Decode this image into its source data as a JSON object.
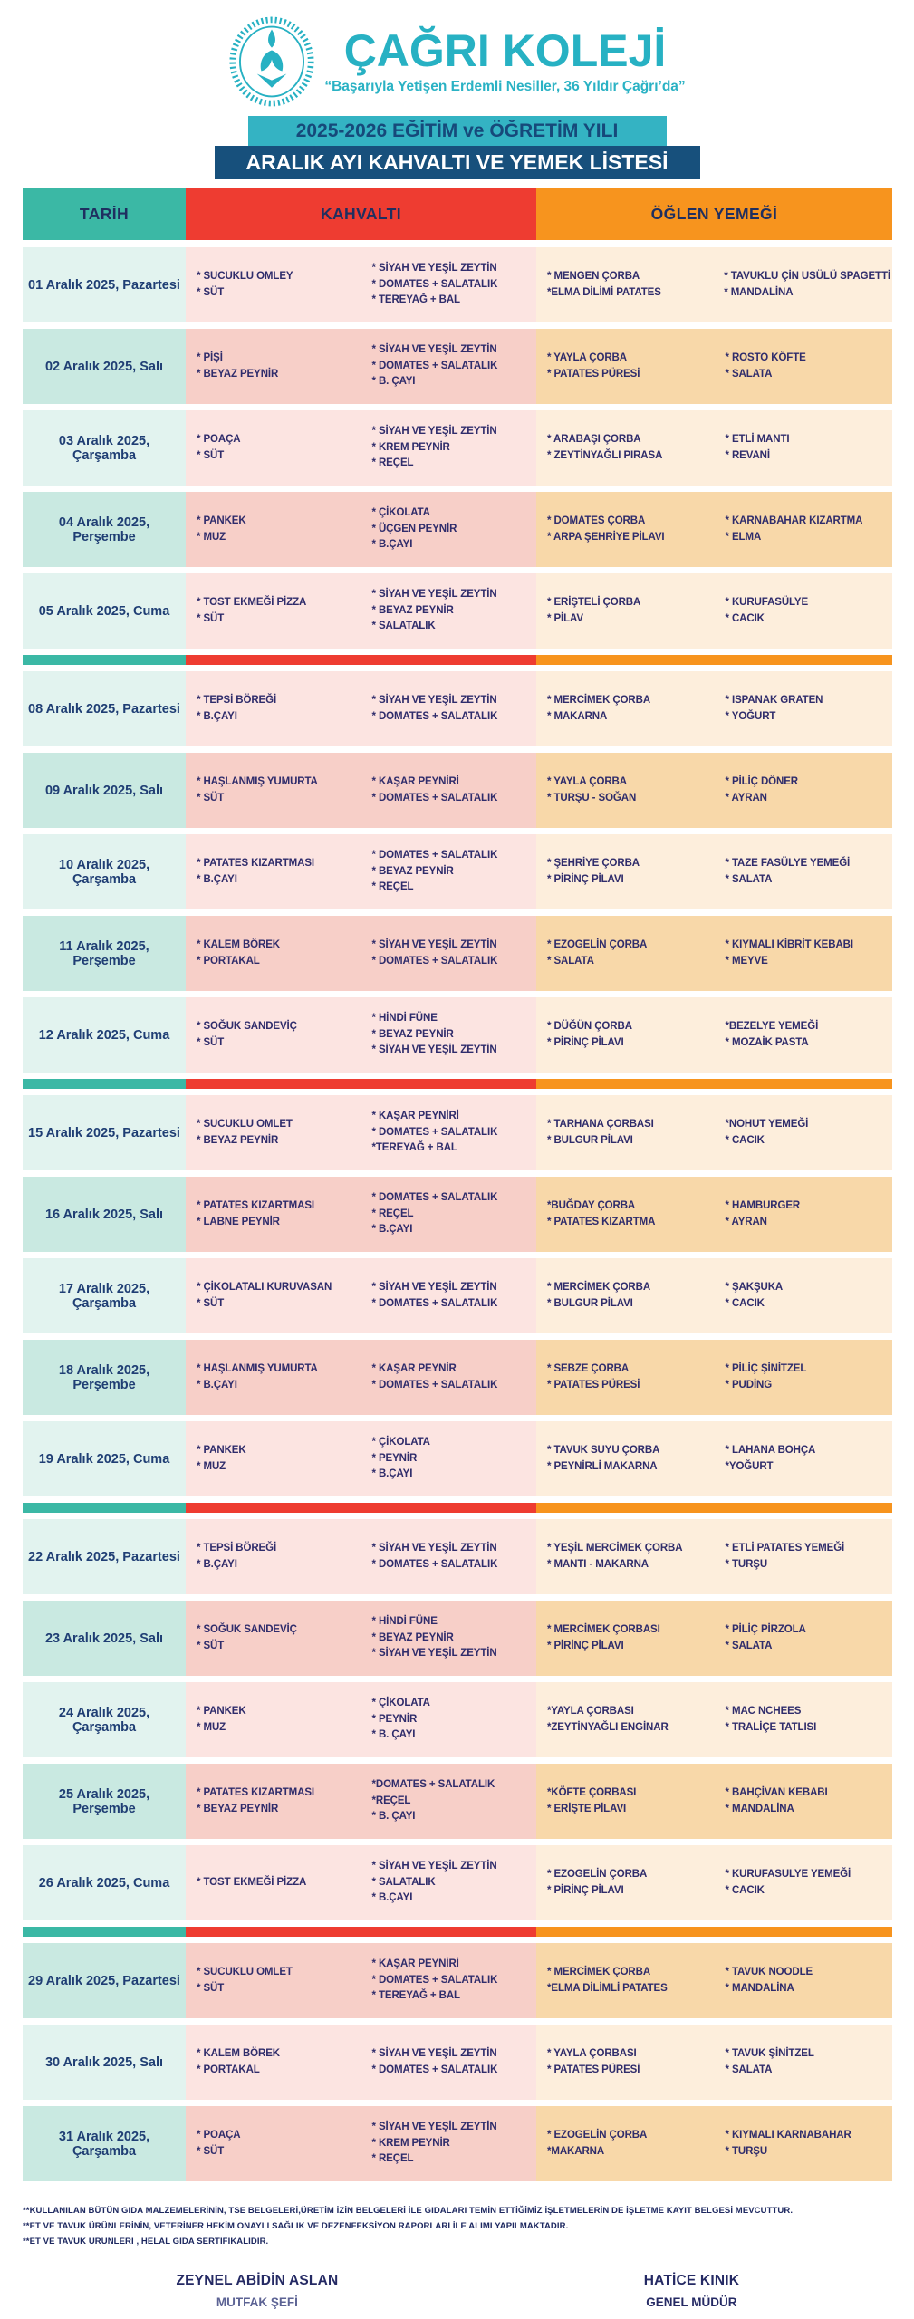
{
  "header": {
    "school_name": "ÇAĞRI KOLEJİ",
    "slogan": "“Başarıyla Yetişen Erdemli Nesiller, 36 Yıldır Çağrı’da”",
    "year_banner": "2025-2026 EĞİTİM ve ÖĞRETİM YILI",
    "title_banner": "ARALIK AYI KAHVALTI VE YEMEK LİSTESİ",
    "logo_icon": "laurel-wreath-tulip-emblem"
  },
  "colors": {
    "brand_teal": "#27b1c3",
    "banner_navy": "#17507c",
    "date_header": "#3bb8a5",
    "breakfast_header": "#ee3c31",
    "lunch_header": "#f7941e",
    "text_navy": "#1f3e74",
    "text_indigo": "#2f2c6b"
  },
  "table": {
    "columns": [
      "TARİH",
      "KAHVALTI",
      "ÖĞLEN YEMEĞİ"
    ],
    "weeks": [
      {
        "rows": [
          {
            "date": "01 Aralık 2025, Pazartesi",
            "shade": "light",
            "breakfast": [
              [
                "* SUCUKLU OMLEY",
                "* SÜT"
              ],
              [
                "* SİYAH VE YEŞİL ZEYTİN",
                "* DOMATES + SALATALIK",
                "* TEREYAĞ + BAL"
              ]
            ],
            "lunch": [
              [
                "* MENGEN ÇORBA",
                "*ELMA DİLİMİ PATATES"
              ],
              [
                "* TAVUKLU ÇİN USÜLÜ SPAGETTİ",
                "* MANDALİNA"
              ]
            ]
          },
          {
            "date": "02 Aralık 2025, Salı",
            "shade": "dark",
            "breakfast": [
              [
                "* PİŞİ",
                "* BEYAZ PEYNİR"
              ],
              [
                "* SİYAH VE YEŞİL ZEYTİN",
                "* DOMATES + SALATALIK",
                "* B. ÇAYI"
              ]
            ],
            "lunch": [
              [
                "* YAYLA ÇORBA",
                "* PATATES PÜRESİ"
              ],
              [
                "* ROSTO KÖFTE",
                "* SALATA"
              ]
            ]
          },
          {
            "date": "03 Aralık 2025, Çarşamba",
            "shade": "light",
            "breakfast": [
              [
                "* POAÇA",
                "* SÜT"
              ],
              [
                "* SİYAH VE YEŞİL ZEYTİN",
                "* KREM PEYNİR",
                "* REÇEL"
              ]
            ],
            "lunch": [
              [
                "* ARABAŞI ÇORBA",
                "* ZEYTİNYAĞLI PIRASA"
              ],
              [
                "* ETLİ MANTI",
                "* REVANİ"
              ]
            ]
          },
          {
            "date": "04 Aralık 2025, Perşembe",
            "shade": "dark",
            "breakfast": [
              [
                "* PANKEK",
                "* MUZ"
              ],
              [
                "* ÇİKOLATA",
                "* ÜÇGEN PEYNİR",
                "* B.ÇAYI"
              ]
            ],
            "lunch": [
              [
                "* DOMATES ÇORBA",
                "* ARPA ŞEHRİYE PİLAVI"
              ],
              [
                "* KARNABAHAR KIZARTMA",
                "* ELMA"
              ]
            ]
          },
          {
            "date": "05 Aralık 2025, Cuma",
            "shade": "light",
            "breakfast": [
              [
                "* TOST EKMEĞİ PİZZA",
                "* SÜT"
              ],
              [
                "* SİYAH VE YEŞİL ZEYTİN",
                "* BEYAZ PEYNİR",
                "* SALATALIK"
              ]
            ],
            "lunch": [
              [
                "* ERİŞTELİ ÇORBA",
                "* PİLAV"
              ],
              [
                "* KURUFASÜLYE",
                "* CACIK"
              ]
            ]
          }
        ]
      },
      {
        "rows": [
          {
            "date": "08 Aralık 2025, Pazartesi",
            "shade": "light",
            "breakfast": [
              [
                "* TEPSİ BÖREĞİ",
                "* B.ÇAYI"
              ],
              [
                "* SİYAH VE YEŞİL ZEYTİN",
                "* DOMATES + SALATALIK"
              ]
            ],
            "lunch": [
              [
                "* MERCİMEK ÇORBA",
                "* MAKARNA"
              ],
              [
                "* ISPANAK GRATEN",
                "* YOĞURT"
              ]
            ]
          },
          {
            "date": "09 Aralık 2025, Salı",
            "shade": "dark",
            "breakfast": [
              [
                "* HAŞLANMIŞ YUMURTA",
                "* SÜT"
              ],
              [
                "* KAŞAR PEYNİRİ",
                "* DOMATES + SALATALIK"
              ]
            ],
            "lunch": [
              [
                "* YAYLA ÇORBA",
                "* TURŞU - SOĞAN"
              ],
              [
                "* PİLİÇ DÖNER",
                "* AYRAN"
              ]
            ]
          },
          {
            "date": "10 Aralık 2025, Çarşamba",
            "shade": "light",
            "breakfast": [
              [
                "* PATATES KIZARTMASI",
                "* B.ÇAYI"
              ],
              [
                "* DOMATES + SALATALIK",
                "* BEYAZ PEYNİR",
                "* REÇEL"
              ]
            ],
            "lunch": [
              [
                "* ŞEHRİYE ÇORBA",
                "* PİRİNÇ PİLAVI"
              ],
              [
                "* TAZE FASÜLYE YEMEĞİ",
                "* SALATA"
              ]
            ]
          },
          {
            "date": "11 Aralık 2025, Perşembe",
            "shade": "dark",
            "breakfast": [
              [
                "* KALEM BÖREK",
                "* PORTAKAL"
              ],
              [
                "* SİYAH VE YEŞİL ZEYTİN",
                "* DOMATES + SALATALIK"
              ]
            ],
            "lunch": [
              [
                "* EZOGELİN ÇORBA",
                "* SALATA"
              ],
              [
                "* KIYMALI KİBRİT KEBABI",
                "* MEYVE"
              ]
            ]
          },
          {
            "date": "12 Aralık 2025, Cuma",
            "shade": "light",
            "breakfast": [
              [
                "* SOĞUK SANDEVİÇ",
                "* SÜT"
              ],
              [
                "* HİNDİ FÜNE",
                "* BEYAZ PEYNİR",
                "* SİYAH VE YEŞİL ZEYTİN"
              ]
            ],
            "lunch": [
              [
                "* DÜĞÜN ÇORBA",
                "* PİRİNÇ PİLAVI"
              ],
              [
                "*BEZELYE YEMEĞİ",
                "* MOZAİK PASTA"
              ]
            ]
          }
        ]
      },
      {
        "rows": [
          {
            "date": "15 Aralık 2025, Pazartesi",
            "shade": "light",
            "breakfast": [
              [
                "* SUCUKLU OMLET",
                "* BEYAZ PEYNİR"
              ],
              [
                "* KAŞAR PEYNİRİ",
                "* DOMATES + SALATALIK",
                "*TEREYAĞ + BAL"
              ]
            ],
            "lunch": [
              [
                "* TARHANA ÇORBASI",
                "* BULGUR PİLAVI"
              ],
              [
                "*NOHUT YEMEĞİ",
                "* CACIK"
              ]
            ]
          },
          {
            "date": "16 Aralık 2025, Salı",
            "shade": "dark",
            "breakfast": [
              [
                "* PATATES KIZARTMASI",
                "* LABNE PEYNİR"
              ],
              [
                "* DOMATES + SALATALIK",
                "* REÇEL",
                "* B.ÇAYI"
              ]
            ],
            "lunch": [
              [
                "*BUĞDAY ÇORBA",
                "* PATATES KIZARTMA"
              ],
              [
                "* HAMBURGER",
                "* AYRAN"
              ]
            ]
          },
          {
            "date": "17 Aralık 2025, Çarşamba",
            "shade": "light",
            "breakfast": [
              [
                "* ÇİKOLATALI KURUVASAN",
                "* SÜT"
              ],
              [
                "* SİYAH VE YEŞİL ZEYTİN",
                "* DOMATES + SALATALIK"
              ]
            ],
            "lunch": [
              [
                "* MERCİMEK ÇORBA",
                "* BULGUR PİLAVI"
              ],
              [
                "* ŞAKŞUKA",
                "* CACIK"
              ]
            ]
          },
          {
            "date": "18 Aralık 2025, Perşembe",
            "shade": "dark",
            "breakfast": [
              [
                "* HAŞLANMIŞ YUMURTA",
                "* B.ÇAYI"
              ],
              [
                "* KAŞAR PEYNİR",
                "* DOMATES + SALATALIK"
              ]
            ],
            "lunch": [
              [
                "* SEBZE ÇORBA",
                "* PATATES PÜRESİ"
              ],
              [
                "* PİLİÇ ŞİNİTZEL",
                "* PUDİNG"
              ]
            ]
          },
          {
            "date": "19 Aralık 2025, Cuma",
            "shade": "light",
            "breakfast": [
              [
                "* PANKEK",
                "* MUZ"
              ],
              [
                "* ÇİKOLATA",
                "* PEYNİR",
                "* B.ÇAYI"
              ]
            ],
            "lunch": [
              [
                "* TAVUK SUYU ÇORBA",
                "* PEYNİRLİ MAKARNA"
              ],
              [
                "* LAHANA BOHÇA",
                "*YOĞURT"
              ]
            ]
          }
        ]
      },
      {
        "rows": [
          {
            "date": "22 Aralık 2025, Pazartesi",
            "shade": "light",
            "breakfast": [
              [
                "* TEPSİ BÖREĞİ",
                "* B.ÇAYI"
              ],
              [
                "* SİYAH VE YEŞİL ZEYTİN",
                "* DOMATES + SALATALIK"
              ]
            ],
            "lunch": [
              [
                "* YEŞİL MERCİMEK ÇORBA",
                "* MANTI - MAKARNA"
              ],
              [
                "* ETLİ PATATES YEMEĞİ",
                "* TURŞU"
              ]
            ]
          },
          {
            "date": "23 Aralık 2025, Salı",
            "shade": "dark",
            "breakfast": [
              [
                "* SOĞUK SANDEVİÇ",
                "* SÜT"
              ],
              [
                "* HİNDİ FÜNE",
                "* BEYAZ PEYNİR",
                "* SİYAH VE YEŞİL ZEYTİN"
              ]
            ],
            "lunch": [
              [
                "* MERCİMEK ÇORBASI",
                "* PİRİNÇ PİLAVI"
              ],
              [
                "* PİLİÇ PİRZOLA",
                "* SALATA"
              ]
            ]
          },
          {
            "date": "24 Aralık 2025, Çarşamba",
            "shade": "light",
            "breakfast": [
              [
                "* PANKEK",
                "* MUZ"
              ],
              [
                "* ÇİKOLATA",
                "* PEYNİR",
                "* B. ÇAYI"
              ]
            ],
            "lunch": [
              [
                "*YAYLA ÇORBASI",
                "*ZEYTİNYAĞLI ENGİNAR"
              ],
              [
                "* MAC NCHEES",
                "* TRALİÇE TATLISI"
              ]
            ]
          },
          {
            "date": "25 Aralık 2025, Perşembe",
            "shade": "dark",
            "breakfast": [
              [
                "* PATATES KIZARTMASI",
                "* BEYAZ PEYNİR"
              ],
              [
                "*DOMATES + SALATALIK",
                "*REÇEL",
                "* B. ÇAYI"
              ]
            ],
            "lunch": [
              [
                "*KÖFTE ÇORBASI",
                "* ERİŞTE PİLAVI"
              ],
              [
                "* BAHÇİVAN KEBABI",
                "* MANDALİNA"
              ]
            ]
          },
          {
            "date": "26 Aralık 2025, Cuma",
            "shade": "light",
            "breakfast": [
              [
                "* TOST EKMEĞİ PİZZA"
              ],
              [
                "* SİYAH VE YEŞİL ZEYTİN",
                "* SALATALIK",
                "* B.ÇAYI"
              ]
            ],
            "lunch": [
              [
                "* EZOGELİN ÇORBA",
                "* PİRİNÇ PİLAVI"
              ],
              [
                "* KURUFASULYE YEMEĞİ",
                "* CACIK"
              ]
            ]
          }
        ]
      },
      {
        "rows": [
          {
            "date": "29 Aralık 2025, Pazartesi",
            "shade": "dark",
            "breakfast": [
              [
                "* SUCUKLU OMLET",
                "* SÜT"
              ],
              [
                "* KAŞAR PEYNİRİ",
                "* DOMATES + SALATALIK",
                "* TEREYAĞ + BAL"
              ]
            ],
            "lunch": [
              [
                "* MERCİMEK ÇORBA",
                "*ELMA DİLİMLİ PATATES"
              ],
              [
                "* TAVUK NOODLE",
                "* MANDALİNA"
              ]
            ]
          },
          {
            "date": "30 Aralık 2025, Salı",
            "shade": "light",
            "breakfast": [
              [
                "* KALEM BÖREK",
                "* PORTAKAL"
              ],
              [
                "* SİYAH VE YEŞİL ZEYTİN",
                "* DOMATES + SALATALIK"
              ]
            ],
            "lunch": [
              [
                "* YAYLA ÇORBASI",
                "* PATATES PÜRESİ"
              ],
              [
                "* TAVUK ŞİNİTZEL",
                "* SALATA"
              ]
            ]
          },
          {
            "date": "31 Aralık 2025, Çarşamba",
            "shade": "dark",
            "breakfast": [
              [
                "* POAÇA",
                "* SÜT"
              ],
              [
                "* SİYAH VE YEŞİL ZEYTİN",
                "* KREM PEYNİR",
                "* REÇEL"
              ]
            ],
            "lunch": [
              [
                "* EZOGELİN ÇORBA",
                "*MAKARNA"
              ],
              [
                "* KIYMALI KARNABAHAR",
                "* TURŞU"
              ]
            ]
          }
        ]
      }
    ]
  },
  "footnotes": [
    "**KULLANILAN BÜTÜN GIDA MALZEMELERİNİN, TSE BELGELERİ,ÜRETİM İZİN BELGELERİ İLE GIDALARI TEMİN ETTİĞİMİZ İŞLETMELERİN DE İŞLETME KAYIT BELGESİ MEVCUTTUR.",
    "**ET VE TAVUK ÜRÜNLERİNİN, VETERİNER HEKİM ONAYLI SAĞLIK  VE DEZENFEKSİYON RAPORLARI İLE ALIMI YAPILMAKTADIR.",
    "**ET VE TAVUK ÜRÜNLERİ , HELAL GIDA SERTİFİKALIDIR."
  ],
  "signatures": {
    "left": {
      "name": "ZEYNEL ABİDİN ASLAN",
      "title": "MUTFAK ŞEFİ"
    },
    "right": {
      "name": "HATİCE KINIK",
      "title": "GENEL MÜDÜR"
    }
  }
}
